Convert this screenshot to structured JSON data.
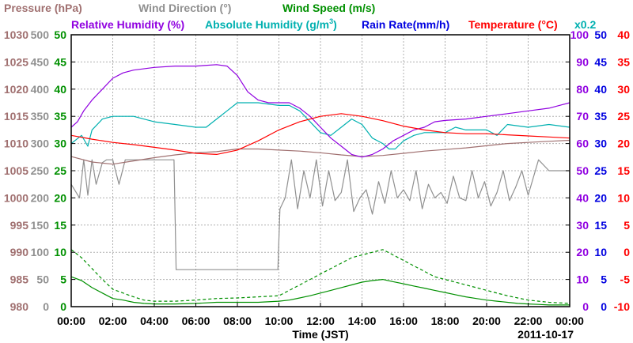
{
  "chart_data": {
    "type": "line",
    "date_label": "2011-10-17",
    "xlabel": "Time (JST)",
    "x_ticks": [
      "00:00",
      "02:00",
      "04:00",
      "06:00",
      "08:00",
      "10:00",
      "12:00",
      "14:00",
      "16:00",
      "18:00",
      "20:00",
      "22:00",
      "00:00"
    ],
    "x_range_hours": [
      0,
      24
    ],
    "grid": true,
    "legend": [
      {
        "key": "pressure",
        "text": "Pressure (hPa)",
        "color": "#a07070"
      },
      {
        "key": "wind_dir",
        "text": "Wind Direction (°)",
        "color": "#909090"
      },
      {
        "key": "wind_speed",
        "text": "Wind Speed (m/s)",
        "color": "#009000"
      },
      {
        "key": "rh",
        "text": "Relative Humidity (%)",
        "color": "#9000e0"
      },
      {
        "key": "abs_hum",
        "text": "Absolute Humidity (g/m³)",
        "color": "#00b0b0"
      },
      {
        "key": "rain",
        "text": "Rain Rate(mm/h)",
        "color": "#0000e0"
      },
      {
        "key": "temp",
        "text": "Temperature (°C)",
        "color": "#ff0000"
      },
      {
        "key": "abs_scale",
        "text": "x0.2",
        "color": "#00b0b0"
      }
    ],
    "axes": {
      "pressure": {
        "range": [
          980,
          1030
        ],
        "ticks": [
          "980",
          "985",
          "990",
          "995",
          "1000",
          "1005",
          "1010",
          "1015",
          "1020",
          "1025",
          "1030"
        ],
        "color": "#a07070"
      },
      "wind_dir": {
        "range": [
          0,
          500
        ],
        "ticks": [
          "0",
          "50",
          "100",
          "150",
          "200",
          "250",
          "300",
          "350",
          "400",
          "450",
          "500"
        ],
        "color": "#909090"
      },
      "wind_speed": {
        "range": [
          0,
          50
        ],
        "ticks": [
          "0",
          "5",
          "10",
          "15",
          "20",
          "25",
          "30",
          "35",
          "40",
          "45",
          "50"
        ],
        "color": "#009000"
      },
      "rh": {
        "range": [
          0,
          100
        ],
        "ticks": [
          "0",
          "10",
          "20",
          "30",
          "40",
          "50",
          "60",
          "70",
          "80",
          "90",
          "100"
        ],
        "color": "#9000e0"
      },
      "rain": {
        "range": [
          0,
          50
        ],
        "ticks": [
          "0",
          "5",
          "10",
          "15",
          "20",
          "25",
          "30",
          "35",
          "40",
          "45",
          "50"
        ],
        "color": "#0000e0"
      },
      "temp": {
        "range": [
          -10,
          40
        ],
        "ticks": [
          "-10",
          "-5",
          "0",
          "5",
          "10",
          "15",
          "20",
          "25",
          "30",
          "35",
          "40"
        ],
        "color": "#ff0000"
      }
    },
    "series": [
      {
        "key": "pressure",
        "name": "Pressure (hPa)",
        "axis": "pressure",
        "x": [
          0,
          1,
          2,
          3,
          4,
          5,
          6,
          7,
          8,
          9,
          10,
          11,
          12,
          13,
          14,
          15,
          16,
          17,
          18,
          19,
          20,
          21,
          22,
          23,
          24
        ],
        "y": [
          1007.6,
          1006.6,
          1006.2,
          1006.8,
          1007.4,
          1007.9,
          1008.3,
          1008.5,
          1009.0,
          1009.0,
          1008.8,
          1008.6,
          1008.3,
          1007.9,
          1007.6,
          1007.8,
          1008.2,
          1008.6,
          1008.9,
          1009.2,
          1009.6,
          1010.0,
          1010.2,
          1010.4,
          1010.6
        ]
      },
      {
        "key": "wind_dir",
        "name": "Wind Direction (°)",
        "axis": "wind_dir",
        "x": [
          0,
          0.4,
          0.6,
          0.8,
          1.0,
          1.2,
          1.5,
          1.7,
          2.0,
          2.3,
          2.6,
          3.0,
          3.5,
          4.0,
          4.5,
          4.95,
          5.05,
          6.0,
          7.0,
          8.0,
          9.0,
          9.95,
          10.05,
          10.3,
          10.6,
          10.9,
          11.2,
          11.5,
          11.8,
          12.1,
          12.4,
          12.7,
          13.0,
          13.3,
          13.6,
          13.9,
          14.2,
          14.5,
          14.8,
          15.1,
          15.4,
          15.7,
          16.0,
          16.3,
          16.6,
          16.9,
          17.2,
          17.5,
          17.8,
          18.1,
          18.4,
          18.7,
          19.0,
          19.3,
          19.6,
          19.9,
          20.2,
          20.5,
          20.8,
          21.1,
          21.4,
          21.7,
          22.0,
          22.5,
          23.0,
          23.5,
          24.0
        ],
        "y": [
          225,
          200,
          270,
          205,
          270,
          225,
          265,
          270,
          270,
          225,
          270,
          270,
          270,
          270,
          270,
          270,
          68,
          68,
          68,
          68,
          68,
          68,
          180,
          200,
          270,
          180,
          250,
          200,
          270,
          185,
          250,
          195,
          210,
          270,
          175,
          200,
          215,
          170,
          230,
          190,
          250,
          200,
          215,
          195,
          250,
          180,
          225,
          200,
          210,
          190,
          240,
          200,
          195,
          250,
          200,
          230,
          185,
          210,
          250,
          195,
          220,
          250,
          205,
          270,
          250,
          250,
          250
        ]
      },
      {
        "key": "wind_speed",
        "name": "Wind Speed (m/s)",
        "axis": "wind_speed",
        "x": [
          0,
          0.5,
          1.0,
          1.5,
          2.0,
          2.5,
          3.0,
          3.5,
          4.0,
          5.0,
          6.0,
          7.0,
          8.0,
          9.0,
          10.0,
          10.5,
          11.0,
          11.5,
          12.0,
          12.5,
          13.0,
          13.5,
          14.0,
          14.5,
          15.0,
          15.5,
          16.0,
          16.5,
          17.0,
          17.5,
          18.0,
          18.5,
          19.0,
          19.5,
          20.0,
          20.5,
          21.0,
          21.5,
          22.0,
          22.5,
          23.0,
          24.0
        ],
        "y": [
          5.5,
          4.8,
          3.5,
          2.5,
          1.5,
          1.2,
          0.8,
          0.6,
          0.5,
          0.5,
          0.6,
          0.8,
          0.8,
          0.8,
          1.0,
          1.2,
          1.6,
          2.0,
          2.5,
          3.0,
          3.5,
          4.0,
          4.5,
          4.8,
          5.0,
          4.6,
          4.2,
          3.8,
          3.4,
          3.0,
          2.6,
          2.2,
          1.8,
          1.5,
          1.2,
          1.0,
          0.8,
          0.6,
          0.5,
          0.4,
          0.3,
          0.3
        ]
      },
      {
        "key": "wind_gust",
        "name": "",
        "axis": "wind_speed",
        "dashed": true,
        "x": [
          0,
          0.5,
          1.0,
          1.5,
          2.0,
          2.5,
          3.0,
          3.5,
          4.0,
          5.0,
          6.0,
          7.0,
          8.0,
          9.0,
          10.0,
          10.5,
          11.0,
          11.5,
          12.0,
          12.5,
          13.0,
          13.5,
          14.0,
          14.5,
          15.0,
          15.5,
          16.0,
          16.5,
          17.0,
          17.5,
          18.0,
          18.5,
          19.0,
          19.5,
          20.0,
          20.5,
          21.0,
          21.5,
          22.0,
          22.5,
          23.0,
          24.0
        ],
        "y": [
          10.5,
          9.0,
          7.0,
          5.0,
          3.2,
          2.5,
          1.8,
          1.2,
          1.0,
          1.0,
          1.2,
          1.5,
          1.6,
          1.8,
          2.0,
          3.0,
          4.0,
          5.0,
          6.0,
          7.0,
          8.0,
          9.0,
          9.5,
          10.0,
          10.5,
          9.5,
          8.5,
          7.5,
          6.5,
          5.5,
          5.0,
          4.5,
          4.0,
          3.5,
          3.0,
          2.5,
          2.0,
          1.6,
          1.2,
          1.0,
          0.8,
          0.6
        ]
      },
      {
        "key": "rh",
        "name": "Relative Humidity (%)",
        "axis": "rh",
        "x": [
          0,
          0.3,
          0.6,
          1.0,
          1.5,
          2.0,
          2.5,
          3.0,
          4.0,
          5.0,
          6.0,
          7.0,
          7.5,
          8.0,
          8.5,
          9.0,
          9.5,
          10.0,
          10.5,
          11.0,
          11.5,
          12.0,
          12.5,
          13.0,
          13.5,
          14.0,
          14.5,
          15.0,
          15.5,
          16.0,
          16.5,
          17.0,
          17.5,
          18.0,
          19.0,
          20.0,
          21.0,
          22.0,
          23.0,
          23.5,
          24.0
        ],
        "y": [
          66,
          68,
          72,
          76,
          80,
          84,
          86,
          87,
          88,
          88.5,
          88.5,
          89,
          88.5,
          85,
          79,
          76,
          75,
          75,
          75,
          73,
          70,
          66,
          62,
          59,
          56,
          55,
          56,
          58,
          61,
          63,
          65,
          66,
          68,
          68.5,
          69,
          70,
          71,
          72,
          73,
          74,
          75
        ]
      },
      {
        "key": "abs_hum",
        "name": "Absolute Humidity (g/m³)",
        "axis": "rh",
        "x": [
          0,
          0.5,
          0.8,
          1.0,
          1.5,
          2.0,
          3.0,
          4.0,
          5.0,
          6.0,
          6.5,
          7.0,
          7.5,
          8.0,
          9.0,
          10.0,
          10.5,
          11.0,
          11.5,
          12.0,
          12.5,
          13.0,
          13.5,
          14.0,
          14.5,
          15.0,
          15.3,
          15.6,
          16.0,
          16.5,
          17.0,
          18.0,
          18.5,
          19.0,
          20.0,
          20.5,
          21.0,
          22.0,
          23.0,
          24.0
        ],
        "y": [
          60,
          63,
          59,
          65,
          69,
          70,
          70,
          68,
          67,
          66,
          66,
          69,
          72,
          75,
          75,
          74,
          74,
          72,
          68,
          64,
          63,
          66,
          69,
          67,
          62,
          60,
          58,
          58,
          61,
          63,
          64,
          64,
          66,
          65,
          65,
          63,
          67,
          66,
          67,
          66
        ]
      },
      {
        "key": "temp",
        "name": "Temperature (°C)",
        "axis": "temp",
        "x": [
          0,
          1,
          2,
          3,
          4,
          5,
          6,
          7,
          8,
          9,
          10,
          11,
          12,
          13,
          14,
          15,
          16,
          17,
          18,
          19,
          20,
          21,
          22,
          23,
          24
        ],
        "y": [
          21.5,
          20.8,
          20.2,
          19.8,
          19.3,
          18.8,
          18.2,
          18.0,
          18.8,
          20.5,
          22.5,
          24.0,
          25.0,
          25.5,
          25.0,
          24.2,
          23.2,
          22.5,
          22.0,
          21.8,
          21.8,
          21.6,
          21.4,
          21.2,
          21.0
        ]
      }
    ]
  }
}
